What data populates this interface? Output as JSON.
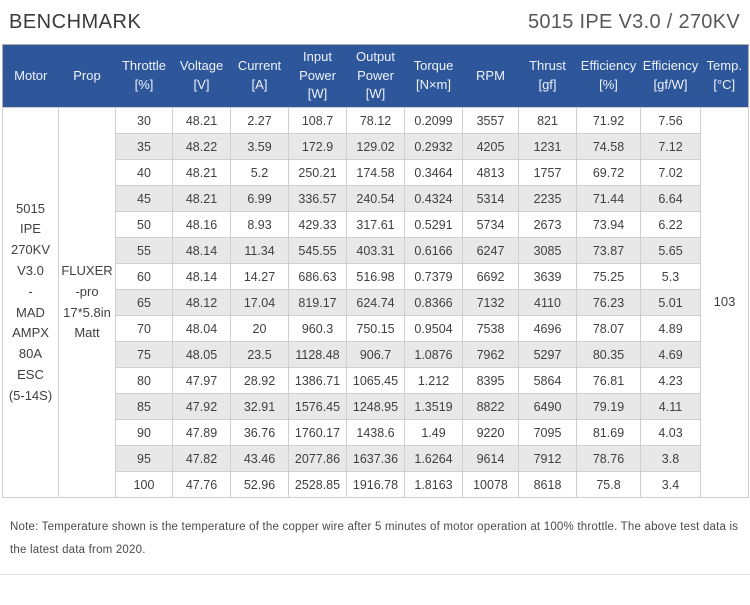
{
  "page": {
    "title_left": "BENCHMARK",
    "title_right": "5015 IPE V3.0 / 270KV"
  },
  "colors": {
    "header_bg": "#2e579b",
    "header_text": "#edf1fa",
    "stripe": "#e8e8e8",
    "border": "#cfcfcf"
  },
  "table": {
    "column_headers": [
      "Motor",
      "Prop",
      "Throttle\n[%]",
      "Voltage\n[V]",
      "Current\n[A]",
      "Input\nPower\n[W]",
      "Output\nPower\n[W]",
      "Torque\n[N×m]",
      "RPM",
      "Thrust\n[gf]",
      "Efficiency\n[%]",
      "Efficiency\n[gf/W]",
      "Temp.\n[°C]"
    ],
    "motor": "5015\nIPE\n270KV\nV3.0\n-\nMAD\nAMPX\n80A ESC\n(5-14S)",
    "prop": "FLUXER\n-pro\n17*5.8in\nMatt",
    "temp": "103",
    "rows": [
      [
        "30",
        "48.21",
        "2.27",
        "108.7",
        "78.12",
        "0.2099",
        "3557",
        "821",
        "71.92",
        "7.56"
      ],
      [
        "35",
        "48.22",
        "3.59",
        "172.9",
        "129.02",
        "0.2932",
        "4205",
        "1231",
        "74.58",
        "7.12"
      ],
      [
        "40",
        "48.21",
        "5.2",
        "250.21",
        "174.58",
        "0.3464",
        "4813",
        "1757",
        "69.72",
        "7.02"
      ],
      [
        "45",
        "48.21",
        "6.99",
        "336.57",
        "240.54",
        "0.4324",
        "5314",
        "2235",
        "71.44",
        "6.64"
      ],
      [
        "50",
        "48.16",
        "8.93",
        "429.33",
        "317.61",
        "0.5291",
        "5734",
        "2673",
        "73.94",
        "6.22"
      ],
      [
        "55",
        "48.14",
        "11.34",
        "545.55",
        "403.31",
        "0.6166",
        "6247",
        "3085",
        "73.87",
        "5.65"
      ],
      [
        "60",
        "48.14",
        "14.27",
        "686.63",
        "516.98",
        "0.7379",
        "6692",
        "3639",
        "75.25",
        "5.3"
      ],
      [
        "65",
        "48.12",
        "17.04",
        "819.17",
        "624.74",
        "0.8366",
        "7132",
        "4110",
        "76.23",
        "5.01"
      ],
      [
        "70",
        "48.04",
        "20",
        "960.3",
        "750.15",
        "0.9504",
        "7538",
        "4696",
        "78.07",
        "4.89"
      ],
      [
        "75",
        "48.05",
        "23.5",
        "1128.48",
        "906.7",
        "1.0876",
        "7962",
        "5297",
        "80.35",
        "4.69"
      ],
      [
        "80",
        "47.97",
        "28.92",
        "1386.71",
        "1065.45",
        "1.212",
        "8395",
        "5864",
        "76.81",
        "4.23"
      ],
      [
        "85",
        "47.92",
        "32.91",
        "1576.45",
        "1248.95",
        "1.3519",
        "8822",
        "6490",
        "79.19",
        "4.11"
      ],
      [
        "90",
        "47.89",
        "36.76",
        "1760.17",
        "1438.6",
        "1.49",
        "9220",
        "7095",
        "81.69",
        "4.03"
      ],
      [
        "95",
        "47.82",
        "43.46",
        "2077.86",
        "1637.36",
        "1.6264",
        "9614",
        "7912",
        "78.76",
        "3.8"
      ],
      [
        "100",
        "47.76",
        "52.96",
        "2528.85",
        "1916.78",
        "1.8163",
        "10078",
        "8618",
        "75.8",
        "3.4"
      ]
    ]
  },
  "note": "Note: Temperature shown is the temperature of the copper wire after 5 minutes of motor operation at 100% throttle. The above test data is the latest data from 2020."
}
